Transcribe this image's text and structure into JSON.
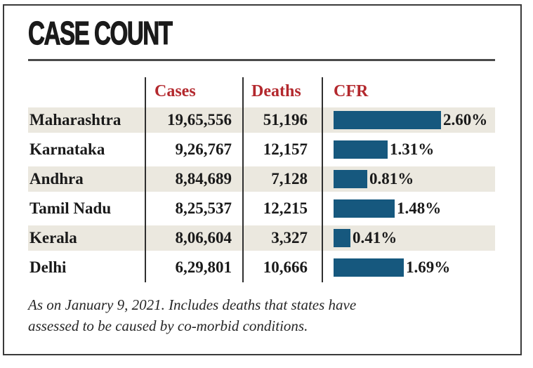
{
  "panel": {
    "title": "CASE COUNT",
    "columns": [
      "Cases",
      "Deaths",
      "CFR"
    ],
    "rows": [
      {
        "state": "Maharashtra",
        "cases": "19,65,556",
        "deaths": "51,196",
        "cfr_percent": 2.6,
        "cfr_label": "2.60%"
      },
      {
        "state": "Karnataka",
        "cases": "9,26,767",
        "deaths": "12,157",
        "cfr_percent": 1.31,
        "cfr_label": "1.31%"
      },
      {
        "state": "Andhra",
        "cases": "8,84,689",
        "deaths": "7,128",
        "cfr_percent": 0.81,
        "cfr_label": "0.81%"
      },
      {
        "state": "Tamil Nadu",
        "cases": "8,25,537",
        "deaths": "12,215",
        "cfr_percent": 1.48,
        "cfr_label": "1.48%"
      },
      {
        "state": "Kerala",
        "cases": "8,06,604",
        "deaths": "3,327",
        "cfr_percent": 0.41,
        "cfr_label": "0.41%"
      },
      {
        "state": "Delhi",
        "cases": "6,29,801",
        "deaths": "10,666",
        "cfr_percent": 1.69,
        "cfr_label": "1.69%"
      }
    ],
    "footnote_line1": "As on January 9, 2021. Includes deaths that states have",
    "footnote_line2": "assessed to be caused by co-morbid conditions.",
    "colors": {
      "bar": "#16587e",
      "header_text": "#b3282d",
      "row_stripe": "#ebe8df"
    }
  },
  "chart_data": {
    "type": "bar",
    "orientation": "horizontal",
    "title": "CASE COUNT",
    "categories": [
      "Maharashtra",
      "Karnataka",
      "Andhra",
      "Tamil Nadu",
      "Kerala",
      "Delhi"
    ],
    "series": [
      {
        "name": "Cases",
        "values": [
          1965556,
          926767,
          884689,
          825537,
          806604,
          629801
        ]
      },
      {
        "name": "Deaths",
        "values": [
          51196,
          12157,
          7128,
          12215,
          3327,
          10666
        ]
      },
      {
        "name": "CFR (%)",
        "values": [
          2.6,
          1.31,
          0.81,
          1.48,
          0.41,
          1.69
        ]
      }
    ],
    "bar_series": "CFR (%)",
    "xlim": [
      0,
      2.8
    ],
    "legend": false,
    "grid": false,
    "note": "As on January 9, 2021. Includes deaths that states have assessed to be caused by co-morbid conditions."
  }
}
